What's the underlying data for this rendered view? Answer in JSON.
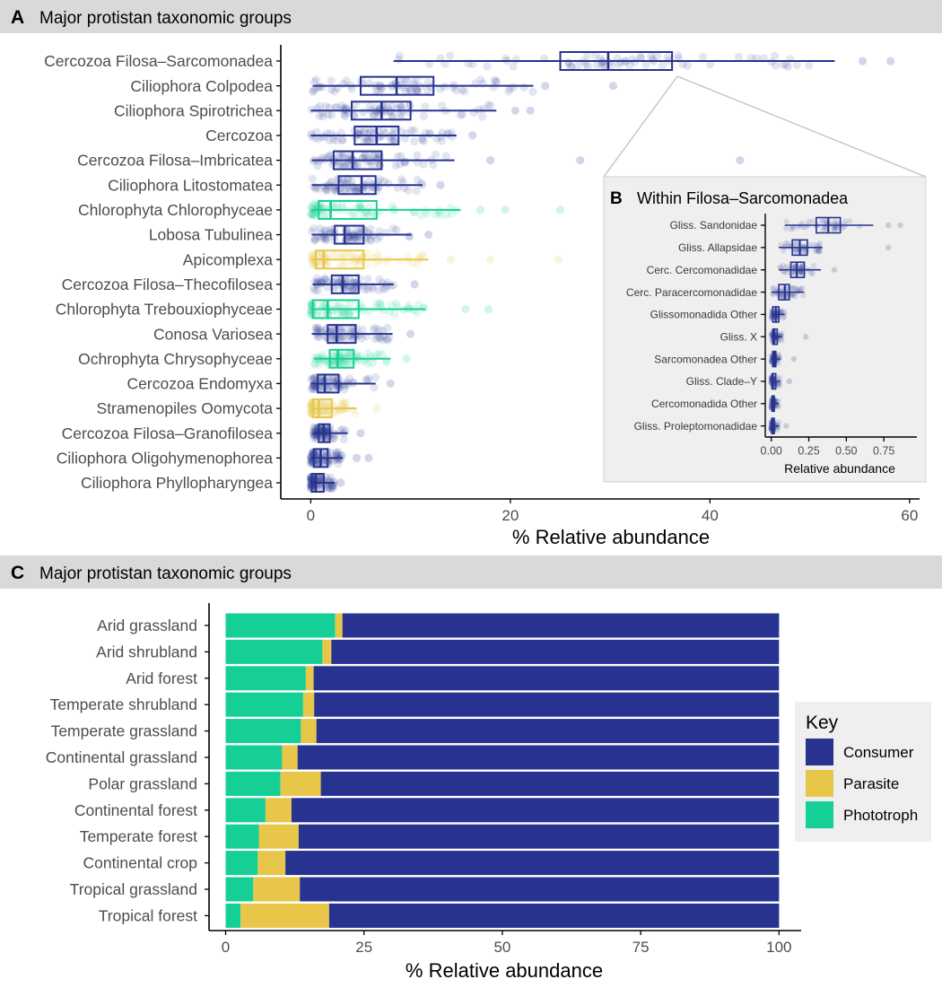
{
  "colors": {
    "consumer": "#27338f",
    "parasite": "#e8c64a",
    "phototroph": "#16cf96",
    "panel_strip": "#d9d9d9",
    "inset_bg": "#efefef",
    "axis": "#000000",
    "tick_text": "#4d4d4d"
  },
  "chart_data": [
    {
      "id": "A",
      "type": "boxplot",
      "panel_letter": "A",
      "title": "Major protistan taxonomic groups",
      "xlabel": "% Relative abundance",
      "ylabel": "",
      "xlim": [
        -3,
        61
      ],
      "x_ticks": [
        0,
        20,
        40,
        60
      ],
      "x_tick_labels": [
        "0",
        "20",
        "40",
        "60"
      ],
      "grid": false,
      "groups": [
        {
          "name": "Cercozoa Filosa–Sarcomonadea",
          "role": "consumer",
          "min": 8.3,
          "q1": 25,
          "median": 29.8,
          "q3": 36.2,
          "max": 52.5,
          "outliers": [
            55.3,
            58.1
          ]
        },
        {
          "name": "Ciliophora Colpodea",
          "role": "consumer",
          "min": 0.2,
          "q1": 5,
          "median": 8.6,
          "q3": 12.3,
          "max": 22.3,
          "outliers": [
            23.5,
            30.3
          ]
        },
        {
          "name": "Ciliophora Spirotrichea",
          "role": "consumer",
          "min": 0,
          "q1": 4.1,
          "median": 7.1,
          "q3": 10,
          "max": 18.6,
          "outliers": [
            20.5,
            22
          ]
        },
        {
          "name": "Cercozoa",
          "role": "consumer",
          "min": 0,
          "q1": 4.4,
          "median": 6.6,
          "q3": 8.8,
          "max": 14.6,
          "outliers": [
            16.2
          ]
        },
        {
          "name": "Cercozoa Filosa–Imbricatea",
          "role": "consumer",
          "min": 0.1,
          "q1": 2.3,
          "median": 4.2,
          "q3": 7.1,
          "max": 14.4,
          "outliers": [
            18,
            27,
            43
          ]
        },
        {
          "name": "Ciliophora Litostomatea",
          "role": "consumer",
          "min": 0.1,
          "q1": 2.8,
          "median": 5.1,
          "q3": 6.5,
          "max": 11.2,
          "outliers": [
            13
          ]
        },
        {
          "name": "Chlorophyta Chlorophyceae",
          "role": "phototroph",
          "min": 0,
          "q1": 0.8,
          "median": 2,
          "q3": 6.6,
          "max": 15,
          "outliers": [
            17,
            19.5,
            25
          ]
        },
        {
          "name": "Lobosa Tubulinea",
          "role": "consumer",
          "min": 0.1,
          "q1": 2.4,
          "median": 3.4,
          "q3": 5.3,
          "max": 10.1,
          "outliers": [
            11.8
          ]
        },
        {
          "name": "Apicomplexa",
          "role": "parasite",
          "min": 0,
          "q1": 0.5,
          "median": 1.3,
          "q3": 5.3,
          "max": 11.8,
          "outliers": [
            14,
            18,
            24.8
          ]
        },
        {
          "name": "Cercozoa Filosa–Thecofilosea",
          "role": "consumer",
          "min": 0.2,
          "q1": 2.1,
          "median": 3.2,
          "q3": 4.8,
          "max": 8.3,
          "outliers": [
            10.4
          ]
        },
        {
          "name": "Chlorophyta Trebouxiophyceae",
          "role": "phototroph",
          "min": 0,
          "q1": 0.2,
          "median": 1.7,
          "q3": 4.8,
          "max": 11.5,
          "outliers": [
            15.5,
            17.8
          ]
        },
        {
          "name": "Conosa Variosea",
          "role": "consumer",
          "min": 0.1,
          "q1": 1.7,
          "median": 2.6,
          "q3": 4.5,
          "max": 8.2,
          "outliers": [
            10
          ]
        },
        {
          "name": "Ochrophyta Chrysophyceae",
          "role": "phototroph",
          "min": 0.3,
          "q1": 1.9,
          "median": 2.7,
          "q3": 4.3,
          "max": 8,
          "outliers": [
            9.6
          ]
        },
        {
          "name": "Cercozoa Endomyxa",
          "role": "consumer",
          "min": 0,
          "q1": 0.7,
          "median": 1.4,
          "q3": 2.8,
          "max": 6.5,
          "outliers": [
            8
          ]
        },
        {
          "name": "Stramenopiles Oomycota",
          "role": "parasite",
          "min": 0,
          "q1": 0.2,
          "median": 0.8,
          "q3": 2.1,
          "max": 4.6,
          "outliers": [
            6.6
          ]
        },
        {
          "name": "Cercozoa Filosa–Granofilosea",
          "role": "consumer",
          "min": 0.2,
          "q1": 0.8,
          "median": 1.3,
          "q3": 1.9,
          "max": 3.7,
          "outliers": [
            5
          ]
        },
        {
          "name": "Ciliophora Oligohymenophorea",
          "role": "consumer",
          "min": 0,
          "q1": 0.3,
          "median": 1,
          "q3": 1.7,
          "max": 3.2,
          "outliers": [
            4.6,
            5.8
          ]
        },
        {
          "name": "Ciliophora Phyllopharyngea",
          "role": "consumer",
          "min": 0,
          "q1": 0.1,
          "median": 0.5,
          "q3": 1.3,
          "max": 2.4,
          "outliers": [
            3
          ]
        }
      ]
    },
    {
      "id": "B",
      "type": "boxplot",
      "panel_letter": "B",
      "title": "Within Filosa–Sarcomonadea",
      "xlabel": "Relative abundance",
      "ylabel": "",
      "xlim": [
        -0.04,
        0.97
      ],
      "x_ticks": [
        0,
        0.25,
        0.5,
        0.75
      ],
      "x_tick_labels": [
        "0.00",
        "0.25",
        "0.50",
        "0.75"
      ],
      "grid": false,
      "groups": [
        {
          "name": "Gliss. Sandonidae",
          "role": "consumer",
          "min": 0.09,
          "q1": 0.3,
          "median": 0.38,
          "q3": 0.46,
          "max": 0.68,
          "outliers": [
            0.78,
            0.86
          ]
        },
        {
          "name": "Gliss. Allapsidae",
          "role": "consumer",
          "min": 0.05,
          "q1": 0.14,
          "median": 0.19,
          "q3": 0.24,
          "max": 0.34,
          "outliers": [
            0.78
          ]
        },
        {
          "name": "Cerc. Cercomonadidae",
          "role": "consumer",
          "min": 0.05,
          "q1": 0.13,
          "median": 0.17,
          "q3": 0.22,
          "max": 0.33,
          "outliers": [
            0.42
          ]
        },
        {
          "name": "Cerc. Paracercomonadidae",
          "role": "consumer",
          "min": 0,
          "q1": 0.05,
          "median": 0.09,
          "q3": 0.12,
          "max": 0.22,
          "outliers": []
        },
        {
          "name": "Glissomonadida Other",
          "role": "consumer",
          "min": 0,
          "q1": 0.01,
          "median": 0.03,
          "q3": 0.05,
          "max": 0.09,
          "outliers": []
        },
        {
          "name": "Gliss. X",
          "role": "consumer",
          "min": 0,
          "q1": 0.01,
          "median": 0.02,
          "q3": 0.04,
          "max": 0.07,
          "outliers": [
            0.23
          ]
        },
        {
          "name": "Sarcomonadea Other",
          "role": "consumer",
          "min": 0,
          "q1": 0.01,
          "median": 0.02,
          "q3": 0.03,
          "max": 0.06,
          "outliers": [
            0.15
          ]
        },
        {
          "name": "Gliss. Clade–Y",
          "role": "consumer",
          "min": 0,
          "q1": 0.005,
          "median": 0.01,
          "q3": 0.03,
          "max": 0.06,
          "outliers": [
            0.12
          ]
        },
        {
          "name": "Cercomonadida Other",
          "role": "consumer",
          "min": 0,
          "q1": 0.005,
          "median": 0.01,
          "q3": 0.02,
          "max": 0.05,
          "outliers": []
        },
        {
          "name": "Gliss. Proleptomonadidae",
          "role": "consumer",
          "min": 0,
          "q1": 0.003,
          "median": 0.008,
          "q3": 0.02,
          "max": 0.05,
          "outliers": [
            0.1
          ]
        }
      ]
    },
    {
      "id": "C",
      "type": "bar",
      "orientation": "horizontal",
      "stacked": true,
      "panel_letter": "C",
      "title": "Major protistan taxonomic groups",
      "xlabel": "% Relative abundance",
      "ylabel": "",
      "xlim": [
        -3,
        104
      ],
      "x_ticks": [
        0,
        25,
        50,
        75,
        100
      ],
      "x_tick_labels": [
        "0",
        "25",
        "50",
        "75",
        "100"
      ],
      "grid": false,
      "categories": [
        "Arid grassland",
        "Arid shrubland",
        "Arid forest",
        "Temperate shrubland",
        "Temperate grassland",
        "Continental grassland",
        "Polar grassland",
        "Continental forest",
        "Temperate forest",
        "Continental crop",
        "Tropical grassland",
        "Tropical forest"
      ],
      "series": [
        {
          "name": "Phototroph",
          "role": "phototroph",
          "values": [
            19.8,
            17.5,
            14.5,
            14.0,
            13.6,
            10.2,
            9.9,
            7.2,
            6.0,
            5.8,
            5.0,
            2.7
          ]
        },
        {
          "name": "Parasite",
          "role": "parasite",
          "values": [
            1.3,
            1.6,
            1.4,
            2.0,
            2.8,
            2.8,
            7.3,
            4.7,
            7.2,
            5.0,
            8.4,
            16.0
          ]
        },
        {
          "name": "Consumer",
          "role": "consumer",
          "values": [
            78.9,
            80.9,
            84.1,
            84.0,
            83.6,
            87.0,
            82.8,
            88.1,
            86.8,
            89.2,
            86.6,
            81.3
          ]
        }
      ],
      "legend": {
        "title": "Key",
        "position": "right",
        "items": [
          {
            "label": "Consumer",
            "role": "consumer"
          },
          {
            "label": "Parasite",
            "role": "parasite"
          },
          {
            "label": "Phototroph",
            "role": "phototroph"
          }
        ]
      }
    }
  ]
}
